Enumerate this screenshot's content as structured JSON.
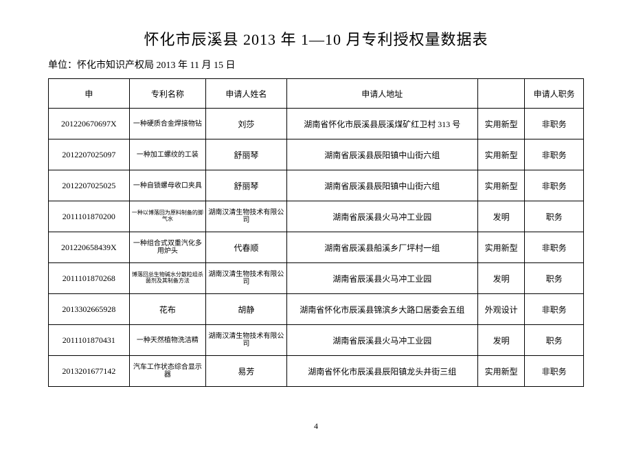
{
  "title": "怀化市辰溪县 2013 年 1—10 月专利授权量数据表",
  "subtitle": "单位：怀化市知识产权局 2013 年 11 月 15 日",
  "columns": [
    "申",
    "专利名称",
    "申请人姓名",
    "申请人地址",
    "",
    "申请人职务"
  ],
  "rows": [
    {
      "id": "201220670697X",
      "name": "一种硬质合金焊接物钻",
      "applicant": "刘莎",
      "address": "湖南省怀化市辰溪县辰溪煤矿红卫村 313 号",
      "type": "实用新型",
      "duty": "非职务",
      "name_class": "small-text"
    },
    {
      "id": "2012207025097",
      "name": "一种加工螺纹的工装",
      "applicant": "舒丽琴",
      "address": "湖南省辰溪县辰阳镇中山街六组",
      "type": "实用新型",
      "duty": "非职务",
      "name_class": "small-text"
    },
    {
      "id": "2012207025025",
      "name": "一种自锁螺母收口夹具",
      "applicant": "舒丽琴",
      "address": "湖南省辰溪县辰阳镇中山街六组",
      "type": "实用新型",
      "duty": "非职务",
      "name_class": "small-text"
    },
    {
      "id": "2011101870200",
      "name": "一种以博落回为原料制备的脚气水",
      "applicant": "湖南汉清生物技术有限公司",
      "address": "湖南省辰溪县火马冲工业园",
      "type": "发明",
      "duty": "职务",
      "name_class": "tiny-text"
    },
    {
      "id": "201220658439X",
      "name": "一种组合式双重汽化多用炉头",
      "applicant": "代春顺",
      "address": "湖南省辰溪县船溪乡厂坪村一组",
      "type": "实用新型",
      "duty": "非职务",
      "name_class": "small-text"
    },
    {
      "id": "2011101870268",
      "name": "博落回总生物碱水分散粒组杀菌剂及其制备方法",
      "applicant": "湖南汉清生物技术有限公司",
      "address": "湖南省辰溪县火马冲工业园",
      "type": "发明",
      "duty": "职务",
      "name_class": "tiny-text"
    },
    {
      "id": "2013302665928",
      "name": "花布",
      "applicant": "胡静",
      "address": "湖南省怀化市辰溪县锦滨乡大路口居委会五组",
      "type": "外观设计",
      "duty": "非职务",
      "name_class": ""
    },
    {
      "id": "2011101870431",
      "name": "一种天然植物洗洁精",
      "applicant": "湖南汉清生物技术有限公司",
      "address": "湖南省辰溪县火马冲工业园",
      "type": "发明",
      "duty": "职务",
      "name_class": "small-text"
    },
    {
      "id": "2013201677142",
      "name": "汽车工作状态综合显示器",
      "applicant": "易芳",
      "address": "湖南省怀化市辰溪县辰阳镇龙头井街三组",
      "type": "实用新型",
      "duty": "非职务",
      "name_class": "small-text"
    }
  ],
  "page_number": "4"
}
